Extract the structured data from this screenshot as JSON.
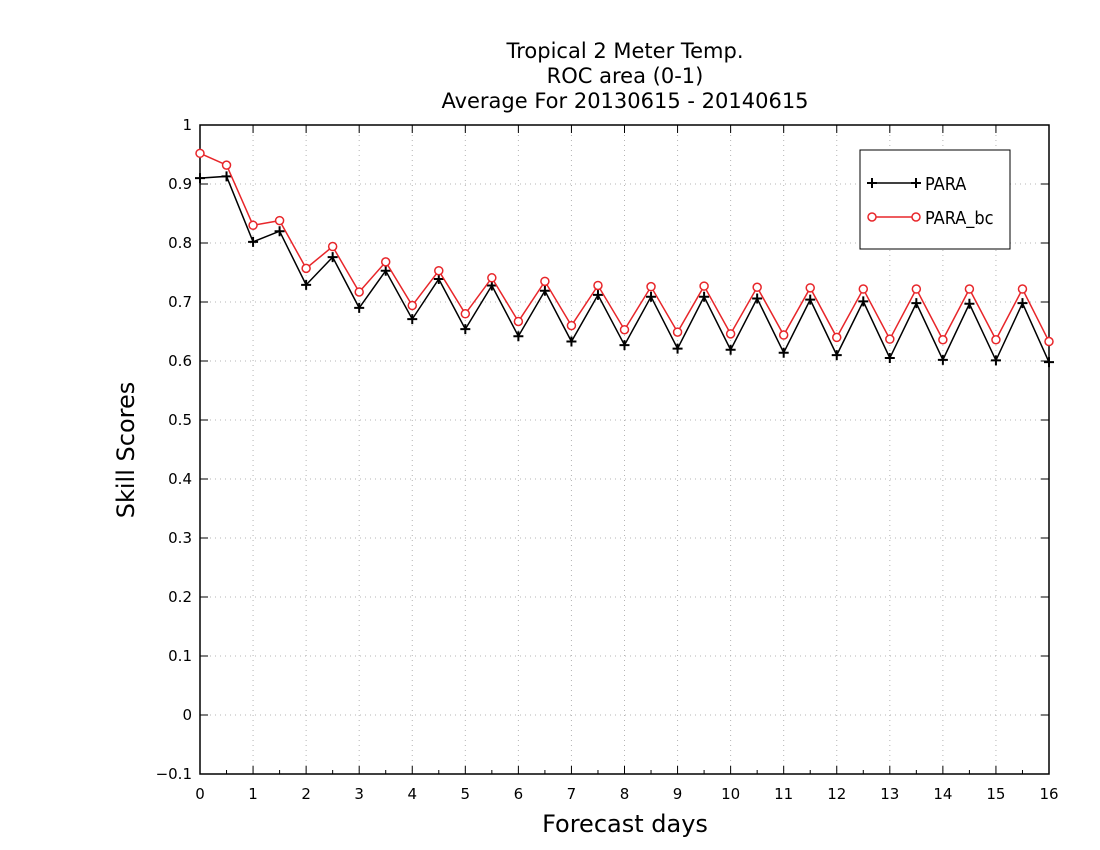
{
  "chart_data": {
    "type": "line",
    "title_lines": [
      "Tropical 2 Meter Temp.",
      "ROC area (0-1)",
      "Average For 20130615 - 20140615"
    ],
    "xlabel": "Forecast days",
    "ylabel": "Skill Scores",
    "xlim": [
      0,
      16
    ],
    "ylim": [
      -0.1,
      1
    ],
    "x_ticks": [
      "0",
      "1",
      "2",
      "3",
      "4",
      "5",
      "6",
      "7",
      "8",
      "9",
      "10",
      "11",
      "12",
      "13",
      "14",
      "15",
      "16"
    ],
    "y_ticks": [
      "−0.1",
      "0",
      "0.1",
      "0.2",
      "0.3",
      "0.4",
      "0.5",
      "0.6",
      "0.7",
      "0.8",
      "0.9",
      "1"
    ],
    "y_tick_values": [
      -0.1,
      0,
      0.1,
      0.2,
      0.3,
      0.4,
      0.5,
      0.6,
      0.7,
      0.8,
      0.9,
      1.0
    ],
    "grid": true,
    "legend_position": "top-right",
    "x": [
      0,
      0.5,
      1,
      1.5,
      2,
      2.5,
      3,
      3.5,
      4,
      4.5,
      5,
      5.5,
      6,
      6.5,
      7,
      7.5,
      8,
      8.5,
      9,
      9.5,
      10,
      10.5,
      11,
      11.5,
      12,
      12.5,
      13,
      13.5,
      14,
      14.5,
      15,
      15.5,
      16
    ],
    "series": [
      {
        "name": "PARA",
        "color": "#000000",
        "marker": "plus",
        "values": [
          0.91,
          0.913,
          0.802,
          0.82,
          0.729,
          0.776,
          0.69,
          0.753,
          0.671,
          0.739,
          0.654,
          0.728,
          0.642,
          0.719,
          0.633,
          0.712,
          0.627,
          0.709,
          0.621,
          0.709,
          0.619,
          0.706,
          0.614,
          0.704,
          0.61,
          0.701,
          0.605,
          0.698,
          0.602,
          0.697,
          0.601,
          0.698,
          0.598
        ]
      },
      {
        "name": "PARA_bc",
        "color": "#e8262a",
        "marker": "circle",
        "values": [
          0.952,
          0.932,
          0.83,
          0.838,
          0.757,
          0.794,
          0.717,
          0.768,
          0.694,
          0.753,
          0.68,
          0.741,
          0.667,
          0.735,
          0.66,
          0.728,
          0.653,
          0.726,
          0.649,
          0.727,
          0.646,
          0.725,
          0.644,
          0.724,
          0.64,
          0.722,
          0.637,
          0.722,
          0.636,
          0.722,
          0.636,
          0.722,
          0.633
        ]
      }
    ]
  }
}
